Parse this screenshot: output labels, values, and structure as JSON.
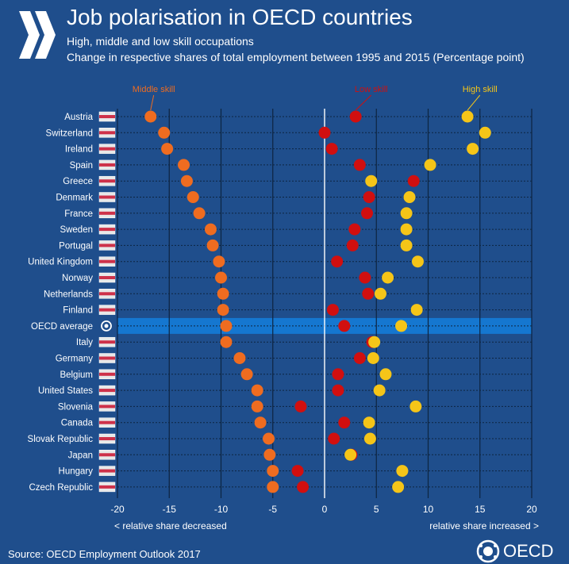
{
  "header": {
    "title": "Job polarisation in OECD countries",
    "subtitle_line1": "High, middle and low skill occupations",
    "subtitle_line2": "Change in respective shares of total employment between 1995 and 2015 (Percentage point)"
  },
  "colors": {
    "background": "#1f4e8c",
    "middle": "#ef6c20",
    "low": "#d10f0f",
    "high": "#f5c518",
    "highlight": "#1577d0",
    "grid": "#0d2440"
  },
  "notes": {
    "left": "< relative share decreased",
    "right": "relative share increased >"
  },
  "footer": {
    "source": "Source: OECD Employment Outlook 2017",
    "logo": "OECD"
  },
  "chart_data": {
    "type": "scatter",
    "orientation": "horizontal dot plot",
    "xlim": [
      -20,
      20
    ],
    "x_ticks": [
      -20,
      -15,
      -10,
      -5,
      0,
      5,
      10,
      15,
      20
    ],
    "highlighted_category": "OECD average",
    "categories": [
      "Austria",
      "Switzerland",
      "Ireland",
      "Spain",
      "Greece",
      "Denmark",
      "France",
      "Sweden",
      "Portugal",
      "United Kingdom",
      "Norway",
      "Netherlands",
      "Finland",
      "OECD average",
      "Italy",
      "Germany",
      "Belgium",
      "United States",
      "Slovenia",
      "Canada",
      "Slovak Republic",
      "Japan",
      "Hungary",
      "Czech Republic"
    ],
    "flag_icons": [
      "austria-flag",
      "switzerland-flag",
      "ireland-flag",
      "spain-flag",
      "greece-flag",
      "denmark-flag",
      "france-flag",
      "sweden-flag",
      "portugal-flag",
      "united-kingdom-flag",
      "norway-flag",
      "netherlands-flag",
      "finland-flag",
      "oecd-logo",
      "italy-flag",
      "germany-flag",
      "belgium-flag",
      "united-states-flag",
      "slovenia-flag",
      "canada-flag",
      "slovakia-flag",
      "japan-flag",
      "hungary-flag",
      "czech-republic-flag"
    ],
    "series": [
      {
        "name": "Middle skill",
        "color": "#ef6c20",
        "values": [
          -16.8,
          -15.5,
          -15.2,
          -13.6,
          -13.3,
          -12.7,
          -12.1,
          -11.0,
          -10.8,
          -10.2,
          -10.0,
          -9.8,
          -9.8,
          -9.5,
          -9.5,
          -8.2,
          -7.5,
          -6.5,
          -6.5,
          -6.2,
          -5.4,
          -5.3,
          -5.0,
          -5.0
        ]
      },
      {
        "name": "Low skill",
        "color": "#d10f0f",
        "values": [
          3.0,
          0.0,
          0.7,
          3.4,
          8.6,
          4.3,
          4.1,
          2.9,
          2.7,
          1.2,
          3.9,
          4.2,
          0.8,
          1.9,
          4.6,
          3.4,
          1.3,
          1.3,
          -2.3,
          1.9,
          0.9,
          2.6,
          -2.6,
          -2.1
        ]
      },
      {
        "name": "High skill",
        "color": "#f5c518",
        "values": [
          13.8,
          15.5,
          14.3,
          10.2,
          4.5,
          8.2,
          7.9,
          7.9,
          7.9,
          9.0,
          6.1,
          5.4,
          8.9,
          7.4,
          4.8,
          4.7,
          5.9,
          5.3,
          8.8,
          4.3,
          4.4,
          2.5,
          7.5,
          7.1
        ]
      }
    ]
  }
}
